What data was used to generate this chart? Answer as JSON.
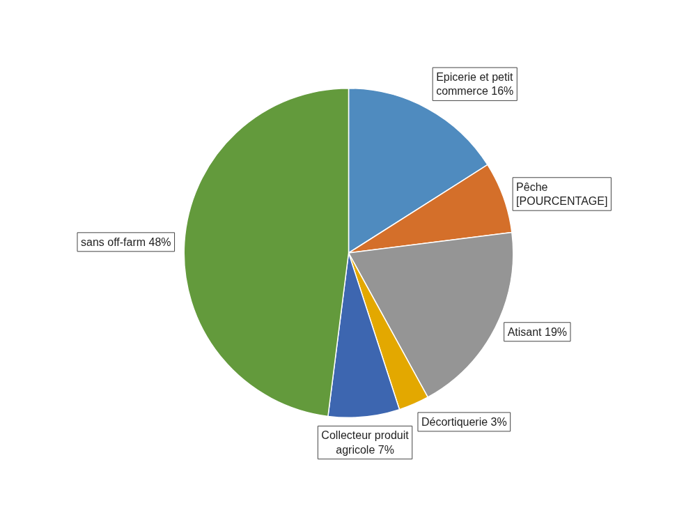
{
  "chart_data": {
    "type": "pie",
    "categories": [
      "Epicerie et petit commerce",
      "Pêche",
      "Atisant",
      "Décortiquerie",
      "Collecteur produit agricole",
      "sans off-farm"
    ],
    "values": [
      16,
      7,
      19,
      3,
      7,
      48
    ],
    "colors": [
      "#4f8bbf",
      "#d46f2a",
      "#959595",
      "#e3a800",
      "#3d66b0",
      "#639a3c"
    ],
    "value_labels": [
      "16%",
      "[POURCENTAGE]",
      "19%",
      "3%",
      "7%",
      "48%"
    ],
    "legend": false
  }
}
